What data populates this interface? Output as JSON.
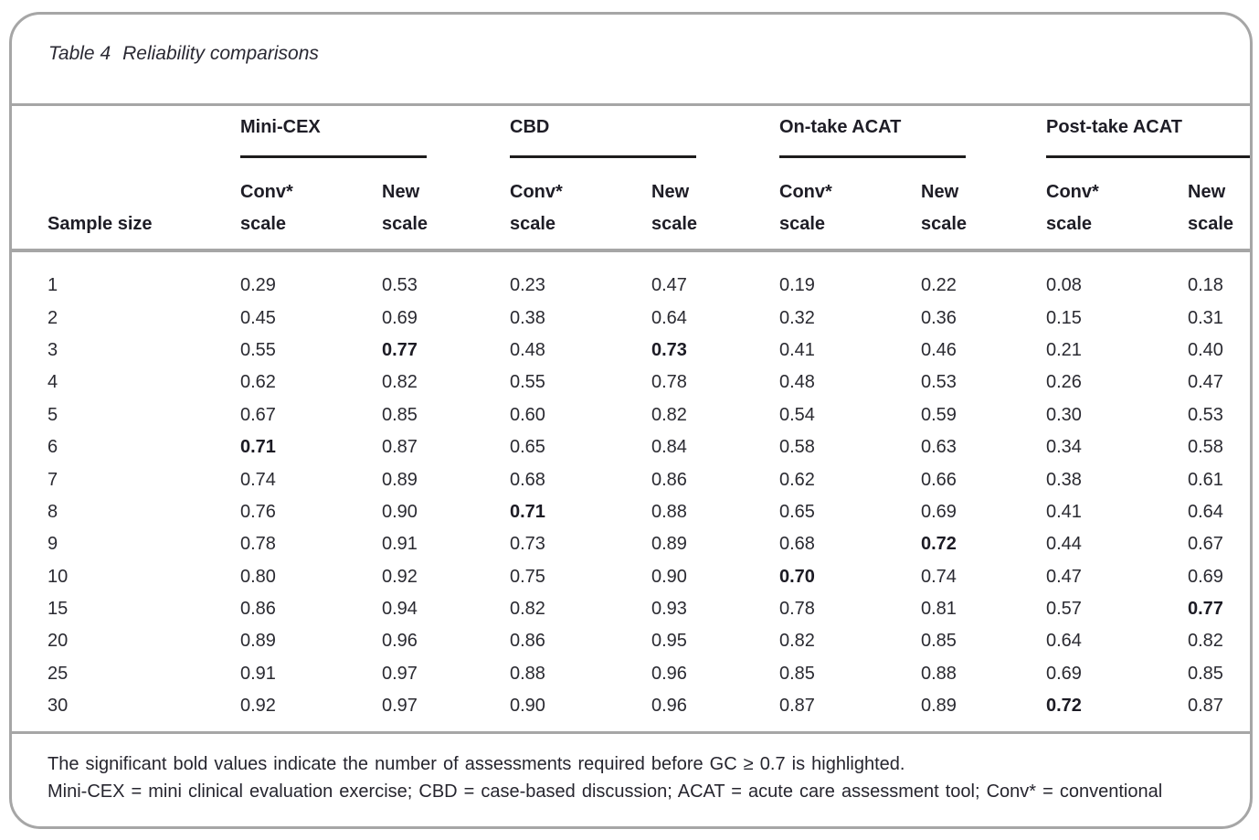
{
  "title": {
    "label": "Table 4",
    "text": "Reliability comparisons"
  },
  "table": {
    "sample_size_header": "Sample size",
    "groups": [
      {
        "name": "Mini-CEX",
        "columns": [
          {
            "line1": "Conv*",
            "line2": "scale"
          },
          {
            "line1": "New",
            "line2": "scale"
          }
        ]
      },
      {
        "name": "CBD",
        "columns": [
          {
            "line1": "Conv*",
            "line2": "scale"
          },
          {
            "line1": "New",
            "line2": "scale"
          }
        ]
      },
      {
        "name": "On-take ACAT",
        "columns": [
          {
            "line1": "Conv*",
            "line2": "scale"
          },
          {
            "line1": "New",
            "line2": "scale"
          }
        ]
      },
      {
        "name": "Post-take ACAT",
        "columns": [
          {
            "line1": "Conv*",
            "line2": "scale"
          },
          {
            "line1": "New",
            "line2": "scale"
          }
        ]
      }
    ],
    "rows": [
      {
        "sample_size": "1",
        "values": [
          "0.29",
          "0.53",
          "0.23",
          "0.47",
          "0.19",
          "0.22",
          "0.08",
          "0.18"
        ],
        "bold_indices": []
      },
      {
        "sample_size": "2",
        "values": [
          "0.45",
          "0.69",
          "0.38",
          "0.64",
          "0.32",
          "0.36",
          "0.15",
          "0.31"
        ],
        "bold_indices": []
      },
      {
        "sample_size": "3",
        "values": [
          "0.55",
          "0.77",
          "0.48",
          "0.73",
          "0.41",
          "0.46",
          "0.21",
          "0.40"
        ],
        "bold_indices": [
          1,
          3
        ]
      },
      {
        "sample_size": "4",
        "values": [
          "0.62",
          "0.82",
          "0.55",
          "0.78",
          "0.48",
          "0.53",
          "0.26",
          "0.47"
        ],
        "bold_indices": []
      },
      {
        "sample_size": "5",
        "values": [
          "0.67",
          "0.85",
          "0.60",
          "0.82",
          "0.54",
          "0.59",
          "0.30",
          "0.53"
        ],
        "bold_indices": []
      },
      {
        "sample_size": "6",
        "values": [
          "0.71",
          "0.87",
          "0.65",
          "0.84",
          "0.58",
          "0.63",
          "0.34",
          "0.58"
        ],
        "bold_indices": [
          0
        ]
      },
      {
        "sample_size": "7",
        "values": [
          "0.74",
          "0.89",
          "0.68",
          "0.86",
          "0.62",
          "0.66",
          "0.38",
          "0.61"
        ],
        "bold_indices": []
      },
      {
        "sample_size": "8",
        "values": [
          "0.76",
          "0.90",
          "0.71",
          "0.88",
          "0.65",
          "0.69",
          "0.41",
          "0.64"
        ],
        "bold_indices": [
          2
        ]
      },
      {
        "sample_size": "9",
        "values": [
          "0.78",
          "0.91",
          "0.73",
          "0.89",
          "0.68",
          "0.72",
          "0.44",
          "0.67"
        ],
        "bold_indices": [
          5
        ]
      },
      {
        "sample_size": "10",
        "values": [
          "0.80",
          "0.92",
          "0.75",
          "0.90",
          "0.70",
          "0.74",
          "0.47",
          "0.69"
        ],
        "bold_indices": [
          4
        ]
      },
      {
        "sample_size": "15",
        "values": [
          "0.86",
          "0.94",
          "0.82",
          "0.93",
          "0.78",
          "0.81",
          "0.57",
          "0.77"
        ],
        "bold_indices": [
          7
        ]
      },
      {
        "sample_size": "20",
        "values": [
          "0.89",
          "0.96",
          "0.86",
          "0.95",
          "0.82",
          "0.85",
          "0.64",
          "0.82"
        ],
        "bold_indices": []
      },
      {
        "sample_size": "25",
        "values": [
          "0.91",
          "0.97",
          "0.88",
          "0.96",
          "0.85",
          "0.88",
          "0.69",
          "0.85"
        ],
        "bold_indices": []
      },
      {
        "sample_size": "30",
        "values": [
          "0.92",
          "0.97",
          "0.90",
          "0.96",
          "0.87",
          "0.89",
          "0.72",
          "0.87"
        ],
        "bold_indices": [
          6
        ]
      }
    ]
  },
  "footnotes": {
    "line1": "The significant bold values indicate the number of assessments required before GC ≥ 0.7 is highlighted.",
    "line2": "Mini-CEX = mini clinical evaluation exercise; CBD = case-based discussion; ACAT = acute care assessment tool; Conv* = conventional"
  },
  "colors": {
    "line_gray": "#a6a6a6",
    "rule_black": "#1d1c1c",
    "text": "#26252e"
  }
}
